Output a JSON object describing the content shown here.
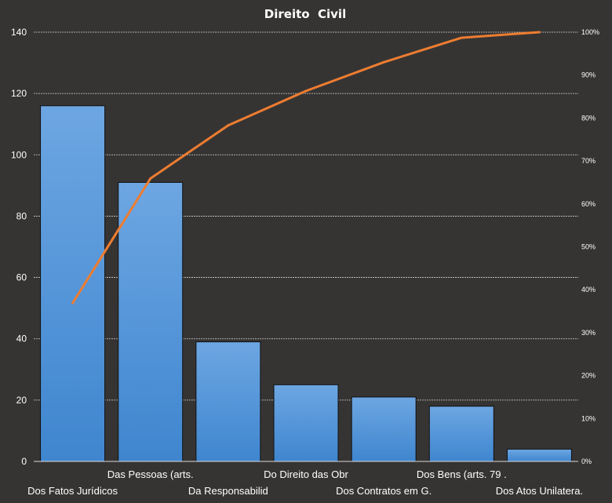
{
  "chart_data": {
    "type": "bar",
    "title": "Direito  Civil",
    "categories": [
      "Dos Fatos Jurídicos",
      "Das Pessoas (arts.",
      "Da Responsabilid",
      "Do Direito das Obr",
      "Dos Contratos em G.",
      "Dos Bens (arts. 79 .",
      "Dos Atos Unilatera."
    ],
    "series": [
      {
        "type": "bar",
        "values": [
          116,
          91,
          39,
          25,
          21,
          18,
          4
        ]
      },
      {
        "type": "line",
        "axis": "secondary",
        "values": [
          36.9,
          65.9,
          78.3,
          86.3,
          93.0,
          98.7,
          100.0
        ]
      }
    ],
    "ylim": [
      0,
      140
    ],
    "yticks": [
      "0",
      "20",
      "40",
      "60",
      "80",
      "100",
      "120",
      "140"
    ],
    "y2lim": [
      0,
      100
    ],
    "y2ticks": [
      "0%",
      "10%",
      "20%",
      "30%",
      "40%",
      "50%",
      "60%",
      "70%",
      "80%",
      "90%",
      "100%"
    ],
    "grid": true,
    "colors": {
      "background": "#363433",
      "bar_top": "#6da6e2",
      "bar_bottom": "#3f86cf",
      "line": "#ed7d31",
      "grid": "#cfcfcf",
      "text": "#ffffff"
    }
  }
}
